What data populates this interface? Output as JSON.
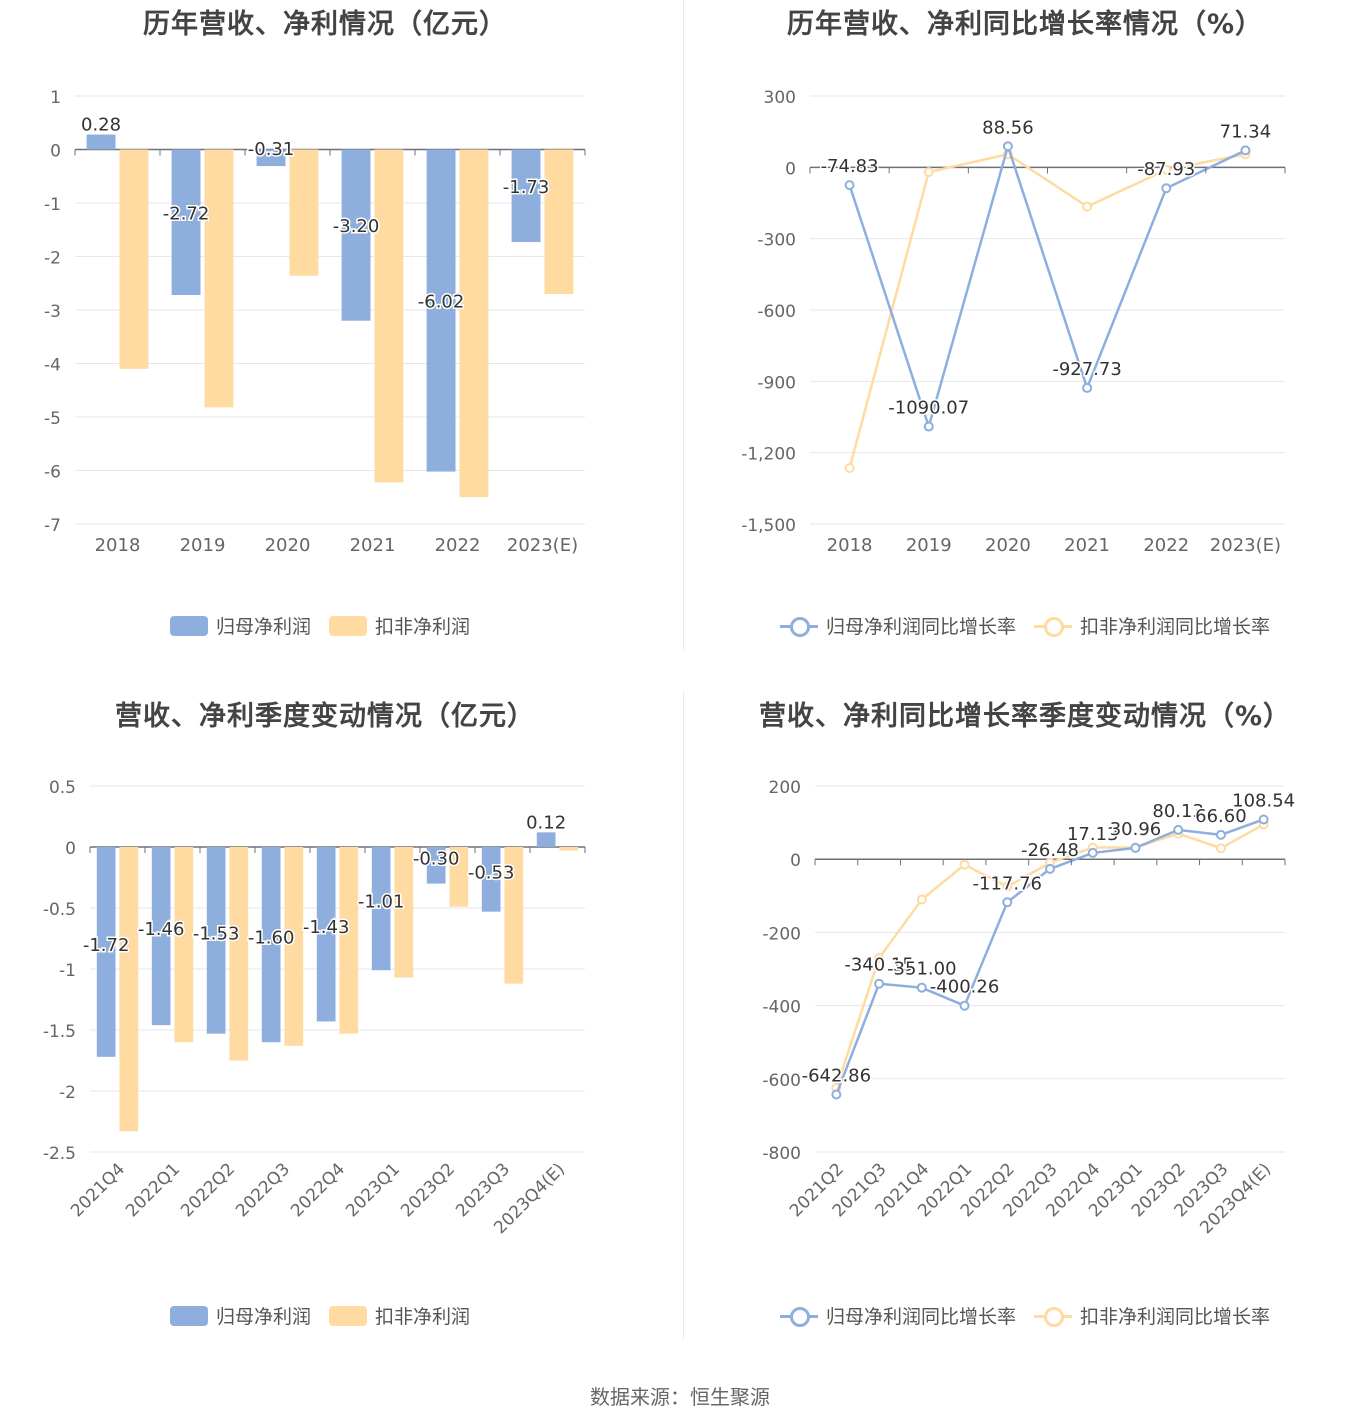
{
  "source": "数据来源：恒生聚源",
  "colors": {
    "primary": "#8eaedd",
    "secondary": "#ffdaa1",
    "grid": "#e4e7f0",
    "axis": "#6e7079",
    "label": "#666666"
  },
  "legend": {
    "bar": [
      "归母净利润",
      "扣非净利润"
    ],
    "line": [
      "归母净利润同比增长率",
      "扣非净利润同比增长率"
    ]
  },
  "chart_data": [
    {
      "type": "bar",
      "title": "历年营收、净利情况（亿元）",
      "categories": [
        "2018",
        "2019",
        "2020",
        "2021",
        "2022",
        "2023(E)"
      ],
      "ylim": [
        -7,
        1
      ],
      "yticks": [
        1,
        0,
        -1,
        -2,
        -3,
        -4,
        -5,
        -6,
        -7
      ],
      "series": [
        {
          "name": "归母净利润",
          "values": [
            0.28,
            -2.72,
            -0.31,
            -3.2,
            -6.02,
            -1.73
          ],
          "labels": [
            "0.28",
            "-2.72",
            "-0.31",
            "-3.20",
            "-6.02",
            "-1.73"
          ]
        },
        {
          "name": "扣非净利润",
          "values": [
            -4.1,
            -4.82,
            -2.36,
            -6.22,
            -6.5,
            -2.7
          ]
        }
      ]
    },
    {
      "type": "line",
      "title": "历年营收、净利同比增长率情况（%）",
      "categories": [
        "2018",
        "2019",
        "2020",
        "2021",
        "2022",
        "2023(E)"
      ],
      "ylim": [
        -1500,
        300
      ],
      "yticks": [
        300,
        0,
        -300,
        -600,
        -900,
        -1200,
        -1500
      ],
      "ytick_labels": [
        "300",
        "0",
        "-300",
        "-600",
        "-900",
        "-1,200",
        "-1,500"
      ],
      "series": [
        {
          "name": "归母净利润同比增长率",
          "values": [
            -74.83,
            -1090.07,
            88.56,
            -927.73,
            -87.93,
            71.34
          ],
          "labels": [
            "-74.83",
            "-1090.07",
            "88.56",
            "-927.73",
            "-87.93",
            "71.34"
          ]
        },
        {
          "name": "扣非净利润同比增长率",
          "values": [
            -1265,
            -20,
            55,
            -165,
            -10,
            55
          ]
        }
      ]
    },
    {
      "type": "bar",
      "title": "营收、净利季度变动情况（亿元）",
      "categories": [
        "2021Q4",
        "2022Q1",
        "2022Q2",
        "2022Q3",
        "2022Q4",
        "2023Q1",
        "2023Q2",
        "2023Q3",
        "2023Q4(E)"
      ],
      "ylim": [
        -2.5,
        0.5
      ],
      "yticks": [
        0.5,
        0,
        -0.5,
        -1,
        -1.5,
        -2,
        -2.5
      ],
      "series": [
        {
          "name": "归母净利润",
          "values": [
            -1.72,
            -1.46,
            -1.53,
            -1.6,
            -1.43,
            -1.01,
            -0.3,
            -0.53,
            0.12
          ],
          "labels": [
            "-1.72",
            "-1.46",
            "-1.53",
            "-1.60",
            "-1.43",
            "-1.01",
            "-0.30",
            "-0.53",
            "0.12"
          ]
        },
        {
          "name": "扣非净利润",
          "values": [
            -2.33,
            -1.6,
            -1.75,
            -1.63,
            -1.53,
            -1.07,
            -0.49,
            -1.12,
            -0.03
          ]
        }
      ]
    },
    {
      "type": "line",
      "title": "营收、净利同比增长率季度变动情况（%）",
      "categories": [
        "2021Q2",
        "2021Q3",
        "2021Q4",
        "2022Q1",
        "2022Q2",
        "2022Q3",
        "2022Q4",
        "2023Q1",
        "2023Q2",
        "2023Q3",
        "2023Q4(E)"
      ],
      "ylim": [
        -800,
        200
      ],
      "yticks": [
        200,
        0,
        -200,
        -400,
        -600,
        -800
      ],
      "series": [
        {
          "name": "归母净利润同比增长率",
          "values": [
            -642.86,
            -340.15,
            -351.0,
            -400.26,
            -117.76,
            -26.48,
            17.13,
            30.96,
            80.13,
            66.6,
            108.54
          ],
          "labels": [
            "-642.86",
            "-340.15",
            "-351.00",
            "-400.26",
            "-117.76",
            "-26.48",
            "17.13",
            "30.96",
            "80.13",
            "66.60",
            "108.54"
          ]
        },
        {
          "name": "扣非净利润同比增长率",
          "values": [
            -625,
            -270,
            -110,
            -15,
            -75,
            -10,
            32,
            32,
            70,
            30,
            95
          ]
        }
      ]
    }
  ]
}
